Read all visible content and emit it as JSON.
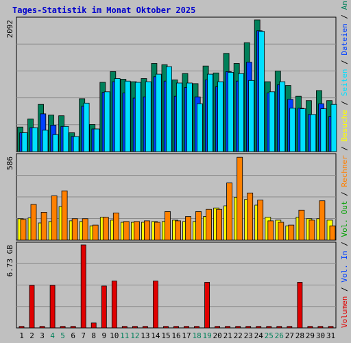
{
  "colors": {
    "background": "#c0c0c0",
    "panel": "#c0c0c0",
    "grid": "#8a8a8a",
    "title": "#0000cc",
    "axis_text": "#000000",
    "anfragen": "#00805a",
    "dateien": "#0040ff",
    "seiten": "#00e0ff",
    "besuche": "#ffff00",
    "rechner": "#ff8000",
    "vol_in": "#0040ff",
    "vol_out": "#00a000",
    "volumen": "#e00000",
    "weekend_label": "#00805a"
  },
  "chart_data": {
    "type": "bar",
    "title": "Tages-Statistik im Monat Oktober 2025",
    "days": [
      "1",
      "2",
      "3",
      "4",
      "5",
      "6",
      "7",
      "8",
      "9",
      "10",
      "11",
      "12",
      "13",
      "14",
      "15",
      "16",
      "17",
      "18",
      "19",
      "20",
      "21",
      "22",
      "23",
      "24",
      "25",
      "26",
      "27",
      "28",
      "29",
      "30",
      "31"
    ],
    "weekend_days": [
      "4",
      "5",
      "11",
      "12",
      "18",
      "19",
      "25",
      "26"
    ],
    "panels": [
      {
        "name": "requests",
        "ymax_label": "2092",
        "ymax": 2092,
        "series": [
          {
            "name": "Anfragen",
            "color": "#00805a",
            "values": [
              390,
              520,
              750,
              580,
              570,
              300,
              840,
              430,
              1100,
              1270,
              1150,
              1110,
              1160,
              1400,
              1380,
              1140,
              1240,
              1080,
              1360,
              1250,
              1560,
              1400,
              1730,
              2092,
              1110,
              1280,
              1050,
              880,
              810,
              970,
              810
            ]
          },
          {
            "name": "Dateien",
            "color": "#0040ff",
            "values": [
              300,
              380,
              600,
              420,
              400,
              240,
              720,
              360,
              940,
              1110,
              930,
              850,
              870,
              1190,
              1120,
              880,
              1020,
              870,
              1140,
              1030,
              1270,
              1120,
              1420,
              1920,
              930,
              1060,
              830,
              690,
              590,
              760,
              560
            ]
          },
          {
            "name": "Seiten",
            "color": "#00e0ff",
            "values": [
              300,
              380,
              340,
              270,
              400,
              240,
              770,
              360,
              950,
              1160,
              1120,
              1100,
              1110,
              1230,
              1350,
              1090,
              1090,
              760,
              1230,
              1110,
              1260,
              1240,
              1130,
              1910,
              950,
              1110,
              690,
              680,
              590,
              680,
              750
            ]
          }
        ]
      },
      {
        "name": "visits",
        "ymax_label": "586",
        "ymax": 586,
        "series": [
          {
            "name": "Besuche",
            "color": "#ffff00",
            "values": [
              150,
              155,
              120,
              130,
              235,
              135,
              130,
              100,
              160,
              140,
              125,
              125,
              125,
              130,
              130,
              140,
              130,
              130,
              165,
              225,
              240,
              300,
              285,
              245,
              160,
              140,
              100,
              160,
              150,
              150,
              140
            ]
          },
          {
            "name": "Rechner",
            "color": "#ff8000",
            "values": [
              145,
              250,
              195,
              310,
              345,
              150,
              150,
              105,
              160,
              190,
              130,
              130,
              135,
              125,
              200,
              135,
              165,
              200,
              215,
              215,
              400,
              580,
              330,
              280,
              135,
              125,
              105,
              210,
              140,
              275,
              100
            ]
          }
        ]
      },
      {
        "name": "traffic",
        "ymax_label": "6.73 GB",
        "ymax": 6.73,
        "series": [
          {
            "name": "Volumen",
            "color": "#e00000",
            "values": [
              0.12,
              3.45,
              0.12,
              3.45,
              0.12,
              0.12,
              6.73,
              0.4,
              3.4,
              3.8,
              0.12,
              0.12,
              0.12,
              3.8,
              0.12,
              0.12,
              0.12,
              0.12,
              3.7,
              0.12,
              0.12,
              0.12,
              0.12,
              0.12,
              0.12,
              0.12,
              0.12,
              3.7,
              0.12,
              0.12,
              0.12
            ]
          }
        ]
      }
    ],
    "side_labels": [
      {
        "text": "Volumen",
        "color": "#e00000"
      },
      {
        "text": "Vol. In",
        "color": "#0040ff"
      },
      {
        "text": "Vol. Out",
        "color": "#00a000"
      },
      {
        "text": "Rechner",
        "color": "#ff8000"
      },
      {
        "text": "Besuche",
        "color": "#ffff00"
      },
      {
        "text": "Seiten",
        "color": "#00e0ff"
      },
      {
        "text": "Dateien",
        "color": "#0040ff"
      },
      {
        "text": "Anfragen",
        "color": "#00805a"
      }
    ]
  }
}
